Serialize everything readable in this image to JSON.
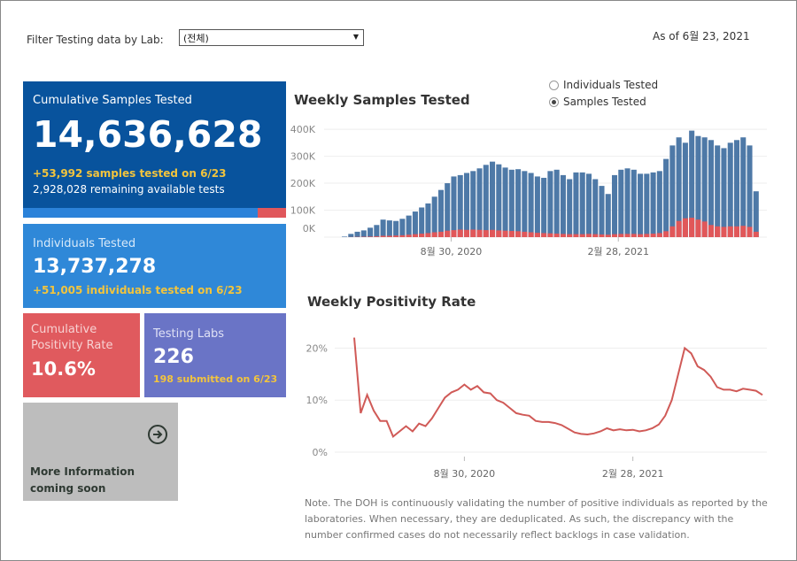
{
  "filter": {
    "label": "Filter Testing data by Lab:",
    "selected": "(전체)"
  },
  "as_of": "As of 6월 23, 2021",
  "cumulative": {
    "title": "Cumulative Samples Tested",
    "value": "14,636,628",
    "delta": "+53,992 samples tested on 6/23",
    "remaining": "2,928,028 remaining available tests",
    "used_fraction": 0.89
  },
  "individuals": {
    "title": "Individuals Tested",
    "value": "13,737,278",
    "delta": "+51,005  individuals  tested on 6/23"
  },
  "positivity": {
    "title_line1": "Cumulative",
    "title_line2": "Positivity Rate",
    "value": "10.6%"
  },
  "labs": {
    "title": "Testing Labs",
    "value": "226",
    "delta": "198 submitted on 6/23"
  },
  "more": {
    "line1": "More Information",
    "line2": "coming soon",
    "icon": "arrow-right-circle-icon"
  },
  "toggle": {
    "options": [
      "Individuals Tested",
      "Samples Tested"
    ],
    "selected": 1
  },
  "note": "Note. The DOH is continuously validating the number of positive individuals as reported by the laboratories. When necessary, they are deduplicated. As such, the discrepancy with the number confirmed cases do not necessarily reflect backlogs in case validation.",
  "colors": {
    "blue_bar": "#4e79a7",
    "red_bar": "#e15759",
    "line": "#d05a57",
    "dark_blue": "#08539d"
  },
  "chart_data": [
    {
      "type": "bar",
      "title": "Weekly Samples Tested",
      "ylim": [
        0,
        420000
      ],
      "y_ticks": [
        "0K",
        "100K",
        "200K",
        "300K",
        "400K"
      ],
      "x_tick_labels": [
        {
          "label": "8월 30, 2020",
          "index": 17
        },
        {
          "label": "2월 28, 2021",
          "index": 43
        }
      ],
      "series": [
        {
          "name": "total",
          "values": [
            2000,
            12000,
            20000,
            25000,
            35000,
            45000,
            65000,
            62000,
            60000,
            68000,
            80000,
            95000,
            110000,
            125000,
            150000,
            175000,
            200000,
            225000,
            230000,
            238000,
            245000,
            255000,
            268000,
            280000,
            270000,
            258000,
            250000,
            252000,
            245000,
            238000,
            225000,
            220000,
            245000,
            250000,
            230000,
            215000,
            240000,
            240000,
            235000,
            215000,
            190000,
            160000,
            230000,
            250000,
            255000,
            250000,
            235000,
            235000,
            240000,
            245000,
            290000,
            340000,
            370000,
            350000,
            395000,
            375000,
            370000,
            360000,
            340000,
            330000,
            350000,
            360000,
            370000,
            340000,
            170000
          ]
        },
        {
          "name": "positive",
          "values": [
            0,
            500,
            1000,
            1500,
            2000,
            3000,
            5000,
            5000,
            6000,
            7000,
            9000,
            11000,
            13000,
            15000,
            18000,
            20000,
            24000,
            26000,
            28000,
            27000,
            28000,
            27000,
            26000,
            27000,
            25000,
            24000,
            23000,
            22000,
            20000,
            18000,
            16000,
            15000,
            14000,
            13000,
            12000,
            11000,
            11000,
            11000,
            12000,
            11000,
            10000,
            9000,
            11000,
            12000,
            12000,
            12000,
            11000,
            12000,
            13000,
            15000,
            22000,
            40000,
            60000,
            70000,
            72000,
            65000,
            58000,
            45000,
            40000,
            38000,
            40000,
            40000,
            42000,
            38000,
            20000
          ]
        }
      ]
    },
    {
      "type": "line",
      "title": "Weekly Positivity Rate",
      "ylim": [
        0,
        25
      ],
      "y_ticks": [
        "0%",
        "10%",
        "20%"
      ],
      "x_tick_labels": [
        {
          "label": "8월 30, 2020",
          "index": 17
        },
        {
          "label": "2월 28, 2021",
          "index": 43
        }
      ],
      "values": [
        22,
        7.5,
        11,
        8,
        6,
        6,
        3,
        4,
        5,
        4,
        5.5,
        5,
        6.5,
        8.5,
        10.5,
        11.5,
        12,
        13,
        12,
        12.7,
        11.5,
        11.3,
        10,
        9.5,
        8.5,
        7.5,
        7.2,
        7,
        6,
        5.8,
        5.8,
        5.6,
        5.2,
        4.5,
        3.8,
        3.5,
        3.4,
        3.6,
        4,
        4.6,
        4.2,
        4.4,
        4.2,
        4.3,
        4,
        4.2,
        4.6,
        5.3,
        7,
        10,
        15,
        20,
        19,
        16.5,
        15.8,
        14.5,
        12.5,
        12,
        12,
        11.7,
        12.2,
        12,
        11.8,
        11
      ]
    }
  ]
}
